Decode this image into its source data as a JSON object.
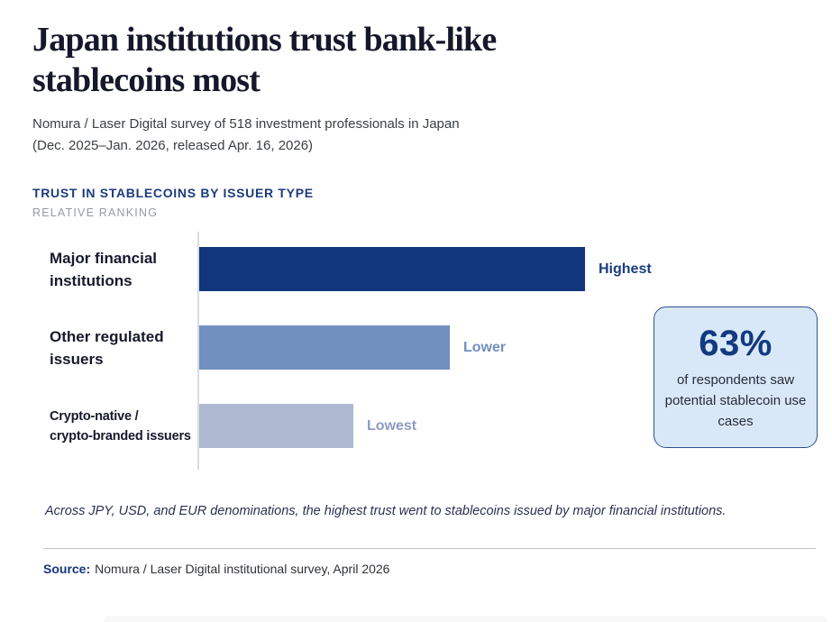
{
  "header": {
    "title_lines": [
      "Japan institutions trust bank-like",
      "stablecoins most"
    ],
    "subtitle_lines": [
      "Nomura / Laser Digital survey of 518 investment professionals in Japan",
      "(Dec. 2025–Jan. 2026, released Apr. 16, 2026)"
    ]
  },
  "chart_data": {
    "type": "bar",
    "orientation": "horizontal",
    "title": "TRUST IN STABLECOINS BY ISSUER TYPE",
    "subtitle": "RELATIVE RANKING",
    "categories": [
      "Major financial institutions",
      "Other regulated issuers",
      "Crypto-native / crypto-branded issuers"
    ],
    "category_lines": [
      [
        "Major financial",
        "institutions"
      ],
      [
        "Other regulated",
        "issuers"
      ],
      [
        "Crypto-native /",
        "crypto-branded issuers"
      ]
    ],
    "values": [
      100,
      65,
      40
    ],
    "value_labels": [
      "Highest",
      "Lower",
      "Lowest"
    ],
    "xlim": [
      0,
      100
    ],
    "grid": false,
    "legend": "none",
    "bar_colors": [
      "#12367E",
      "#7190BE",
      "#AFBAD2"
    ],
    "value_label_colors": [
      "#1B3C80",
      "#7190BE",
      "#8C9CC2"
    ],
    "category_label_color": "#16182C",
    "axis_color": "#D8DBE0"
  },
  "callout": {
    "stat": "63%",
    "description": "of respondents saw potential stablecoin use cases",
    "background": "#D9E8F8",
    "border_color": "#31508F",
    "stat_color": "#123A80"
  },
  "note": "Across JPY, USD, and EUR denominations, the highest trust went to stablecoins issued by major financial institutions.",
  "source": {
    "label": "Source:",
    "text": "Nomura / Laser Digital institutional survey, April 2026"
  }
}
